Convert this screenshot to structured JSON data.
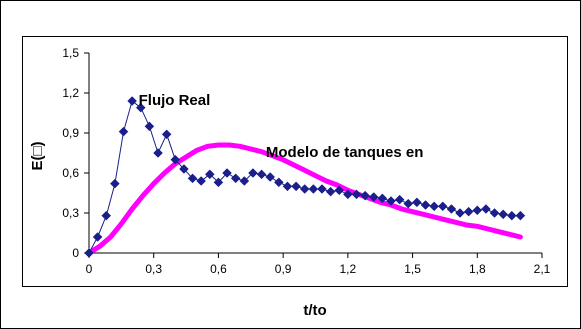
{
  "chart_data": {
    "type": "line",
    "title": "",
    "xlabel": "t/to",
    "ylabel": "E(□)",
    "xlim": [
      0,
      2.1
    ],
    "ylim": [
      0,
      1.5
    ],
    "x_ticks": [
      0,
      0.3,
      0.6,
      0.9,
      1.2,
      1.5,
      1.8,
      2.1
    ],
    "x_tick_labels": [
      "0",
      "0,3",
      "0,6",
      "0,9",
      "1,2",
      "1,5",
      "1,8",
      "2,1"
    ],
    "y_ticks": [
      0,
      0.3,
      0.6,
      0.9,
      1.2,
      1.5
    ],
    "y_tick_labels": [
      "0",
      "0,3",
      "0,6",
      "0,9",
      "1,2",
      "1,5"
    ],
    "grid": false,
    "legend": "none",
    "annotations": [
      {
        "text": "Flujo Real",
        "x": 0.23,
        "y": 1.11
      },
      {
        "text": "Modelo de tanques en",
        "x": 0.82,
        "y": 0.72
      }
    ],
    "series": [
      {
        "name": "Flujo Real",
        "color": "#1a1f8c",
        "marker": "diamond",
        "x": [
          0,
          0.04,
          0.08,
          0.12,
          0.16,
          0.2,
          0.24,
          0.28,
          0.32,
          0.36,
          0.4,
          0.44,
          0.48,
          0.52,
          0.56,
          0.6,
          0.64,
          0.68,
          0.72,
          0.76,
          0.8,
          0.84,
          0.88,
          0.92,
          0.96,
          1.0,
          1.04,
          1.08,
          1.12,
          1.16,
          1.2,
          1.24,
          1.28,
          1.32,
          1.36,
          1.4,
          1.44,
          1.48,
          1.52,
          1.56,
          1.6,
          1.64,
          1.68,
          1.72,
          1.76,
          1.8,
          1.84,
          1.88,
          1.92,
          1.96,
          2.0
        ],
        "y": [
          0.0,
          0.12,
          0.28,
          0.52,
          0.91,
          1.14,
          1.09,
          0.95,
          0.75,
          0.89,
          0.7,
          0.63,
          0.56,
          0.54,
          0.59,
          0.53,
          0.6,
          0.56,
          0.54,
          0.6,
          0.59,
          0.57,
          0.53,
          0.5,
          0.5,
          0.48,
          0.48,
          0.48,
          0.46,
          0.47,
          0.44,
          0.44,
          0.43,
          0.42,
          0.41,
          0.39,
          0.4,
          0.37,
          0.38,
          0.36,
          0.35,
          0.35,
          0.33,
          0.3,
          0.31,
          0.32,
          0.33,
          0.3,
          0.29,
          0.28,
          0.28
        ]
      },
      {
        "name": "Modelo de tanques en",
        "color": "#ff00ff",
        "marker": "none",
        "x": [
          0,
          0.05,
          0.1,
          0.15,
          0.2,
          0.25,
          0.3,
          0.35,
          0.4,
          0.45,
          0.5,
          0.55,
          0.6,
          0.65,
          0.7,
          0.75,
          0.8,
          0.85,
          0.9,
          0.95,
          1.0,
          1.05,
          1.1,
          1.15,
          1.2,
          1.25,
          1.3,
          1.35,
          1.4,
          1.45,
          1.5,
          1.55,
          1.6,
          1.65,
          1.7,
          1.75,
          1.8,
          1.85,
          1.9,
          1.95,
          2.0
        ],
        "y": [
          0.0,
          0.05,
          0.12,
          0.22,
          0.33,
          0.43,
          0.52,
          0.6,
          0.67,
          0.72,
          0.77,
          0.8,
          0.81,
          0.81,
          0.8,
          0.78,
          0.76,
          0.73,
          0.7,
          0.66,
          0.62,
          0.58,
          0.54,
          0.51,
          0.47,
          0.44,
          0.41,
          0.38,
          0.36,
          0.33,
          0.31,
          0.29,
          0.27,
          0.25,
          0.23,
          0.21,
          0.2,
          0.18,
          0.16,
          0.14,
          0.12
        ]
      }
    ]
  }
}
